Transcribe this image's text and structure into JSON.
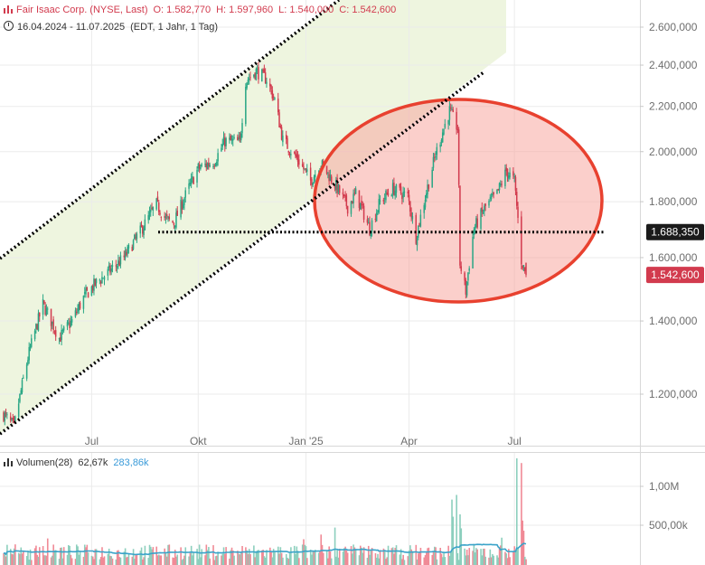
{
  "legend": {
    "title": "Fair Isaac Corp. (NYSE, Last)",
    "open": "O: 1.582,770",
    "high": "H: 1.597,960",
    "low": "L: 1.540,000",
    "close": "C: 1.542,600",
    "range": "16.04.2024 - 11.07.2025",
    "info": "(EDT, 1 Jahr, 1 Tag)"
  },
  "volume_legend": {
    "label": "Volumen(28)",
    "value": "62,67k",
    "avg": "283,86k"
  },
  "colors": {
    "up": "#2aa785",
    "down": "#d23b4e",
    "channel_fill": "#eef5df",
    "circle_stroke": "#e8412f",
    "circle_fill": "#f8a8a0",
    "vol_avg_line": "#3aa3c9"
  },
  "markers": {
    "support_label": "1.688,350",
    "last_price_label": "1.542,600"
  },
  "chart_data": [
    {
      "type": "candlestick",
      "title": "Fair Isaac Corp. (NYSE, Last)",
      "x_tick_labels": [
        "Jul",
        "Okt",
        "Jan '25",
        "Apr",
        "Jul"
      ],
      "y_tick_labels": [
        "2.600,000",
        "2.400,000",
        "2.200,000",
        "2.000,000",
        "1.800,000",
        "1.600,000",
        "1.400,000",
        "1.200,000"
      ],
      "y_ticks": [
        2600,
        2400,
        2200,
        2000,
        1800,
        1600,
        1400,
        1200
      ],
      "y_scale": "log",
      "ylim": [
        1090,
        2760
      ],
      "grid": true,
      "price_path": [
        [
          "2024-04-16",
          1150
        ],
        [
          "2024-04-25",
          1120
        ],
        [
          "2024-05-08",
          1310
        ],
        [
          "2024-05-20",
          1450
        ],
        [
          "2024-06-03",
          1350
        ],
        [
          "2024-06-14",
          1400
        ],
        [
          "2024-06-24",
          1470
        ],
        [
          "2024-07-03",
          1510
        ],
        [
          "2024-07-15",
          1550
        ],
        [
          "2024-07-29",
          1600
        ],
        [
          "2024-08-12",
          1690
        ],
        [
          "2024-08-26",
          1790
        ],
        [
          "2024-09-03",
          1735
        ],
        [
          "2024-09-10",
          1720
        ],
        [
          "2024-09-20",
          1825
        ],
        [
          "2024-10-01",
          1930
        ],
        [
          "2024-10-15",
          1960
        ],
        [
          "2024-10-24",
          2045
        ],
        [
          "2024-11-06",
          2040
        ],
        [
          "2024-11-11",
          2320
        ],
        [
          "2024-11-20",
          2370
        ],
        [
          "2024-11-29",
          2330
        ],
        [
          "2024-12-06",
          2230
        ],
        [
          "2024-12-13",
          2050
        ],
        [
          "2024-12-27",
          1960
        ],
        [
          "2025-01-06",
          1880
        ],
        [
          "2025-01-15",
          1950
        ],
        [
          "2025-01-28",
          1860
        ],
        [
          "2025-02-07",
          1780
        ],
        [
          "2025-02-14",
          1830
        ],
        [
          "2025-02-26",
          1700
        ],
        [
          "2025-03-07",
          1800
        ],
        [
          "2025-03-18",
          1850
        ],
        [
          "2025-03-31",
          1820
        ],
        [
          "2025-04-07",
          1670
        ],
        [
          "2025-04-14",
          1800
        ],
        [
          "2025-04-24",
          1990
        ],
        [
          "2025-05-06",
          2180
        ],
        [
          "2025-05-13",
          2100
        ],
        [
          "2025-05-15",
          1580
        ],
        [
          "2025-05-20",
          1490
        ],
        [
          "2025-05-27",
          1700
        ],
        [
          "2025-06-06",
          1780
        ],
        [
          "2025-06-16",
          1830
        ],
        [
          "2025-06-24",
          1920
        ],
        [
          "2025-07-01",
          1880
        ],
        [
          "2025-07-07",
          1590
        ],
        [
          "2025-07-11",
          1543
        ]
      ],
      "last_price": 1542.6,
      "support_level": 1688.35
    },
    {
      "type": "bar",
      "title": "Volumen(28)",
      "y_tick_labels": [
        "1,00M",
        "500,00k"
      ],
      "y_ticks": [
        1000000,
        500000
      ],
      "ylim": [
        0,
        1400000
      ],
      "typical_volume": 150000,
      "moving_average": 283860,
      "spikes": [
        [
          "2024-05-24",
          330000
        ],
        [
          "2024-12-31",
          320000
        ],
        [
          "2025-01-15",
          380000
        ],
        [
          "2025-01-27",
          470000
        ],
        [
          "2025-05-08",
          830000
        ],
        [
          "2025-05-09",
          610000
        ],
        [
          "2025-05-12",
          890000
        ],
        [
          "2025-05-15",
          640000
        ],
        [
          "2025-05-16",
          460000
        ],
        [
          "2025-06-20",
          340000
        ],
        [
          "2025-07-03",
          1360000
        ],
        [
          "2025-07-07",
          1300000
        ],
        [
          "2025-07-08",
          560000
        ],
        [
          "2025-07-09",
          430000
        ],
        [
          "2025-07-11",
          62670
        ]
      ]
    }
  ]
}
